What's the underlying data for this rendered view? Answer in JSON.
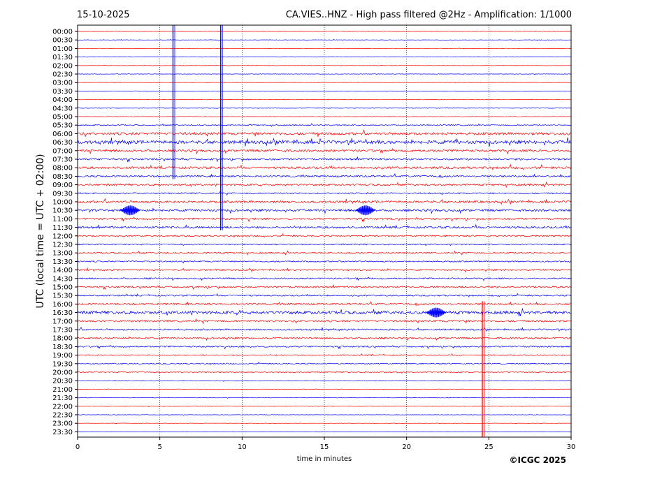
{
  "header": {
    "date": "15-10-2025",
    "title": "CA.VIES..HNZ - High pass filtered @2Hz - Amplification: 1/1000"
  },
  "footer": {
    "copyright": "©ICGC 2025"
  },
  "chart_data": {
    "type": "line",
    "xlabel": "time in minutes",
    "ylabel": "UTC (local time = UTC + 02:00)",
    "xlim": [
      0,
      30
    ],
    "x_ticks": [
      0,
      5,
      10,
      15,
      20,
      25,
      30
    ],
    "grid": "vertical dotted lines at x ticks",
    "row_labels": [
      "00:00",
      "00:30",
      "01:00",
      "01:30",
      "02:00",
      "02:30",
      "03:00",
      "03:30",
      "04:00",
      "04:30",
      "05:00",
      "05:30",
      "06:00",
      "06:30",
      "07:00",
      "07:30",
      "08:00",
      "08:30",
      "09:00",
      "09:30",
      "10:00",
      "10:30",
      "11:00",
      "11:30",
      "12:00",
      "12:30",
      "13:00",
      "13:30",
      "14:00",
      "14:30",
      "15:00",
      "15:30",
      "16:00",
      "16:30",
      "17:00",
      "17:30",
      "18:00",
      "18:30",
      "19:00",
      "19:30",
      "20:00",
      "20:30",
      "21:00",
      "21:30",
      "22:00",
      "22:30",
      "23:00",
      "23:30"
    ],
    "trace_colors": [
      "#ff0000",
      "#0000ff"
    ],
    "row_activity": [
      0.05,
      0.06,
      0.05,
      0.05,
      0.06,
      0.06,
      0.05,
      0.05,
      0.06,
      0.06,
      0.07,
      0.15,
      0.35,
      0.45,
      0.3,
      0.25,
      0.3,
      0.25,
      0.25,
      0.2,
      0.3,
      0.3,
      0.25,
      0.28,
      0.2,
      0.18,
      0.2,
      0.18,
      0.2,
      0.2,
      0.22,
      0.2,
      0.25,
      0.4,
      0.25,
      0.22,
      0.22,
      0.2,
      0.15,
      0.15,
      0.15,
      0.08,
      0.07,
      0.07,
      0.06,
      0.06,
      0.05,
      0.05
    ],
    "events": [
      {
        "x": 5.8,
        "rows": "00:00-08:30",
        "label": ""
      },
      {
        "x": 8.7,
        "rows": "00:00-11:30",
        "label": ""
      },
      {
        "x": 24.6,
        "rows": "16:00-23:30",
        "label": ""
      },
      {
        "x": 3.2,
        "rows": "10:30",
        "label": ""
      },
      {
        "x": 17.5,
        "rows": "10:30",
        "label": ""
      },
      {
        "x": 21.8,
        "rows": "16:30",
        "label": ""
      }
    ]
  }
}
